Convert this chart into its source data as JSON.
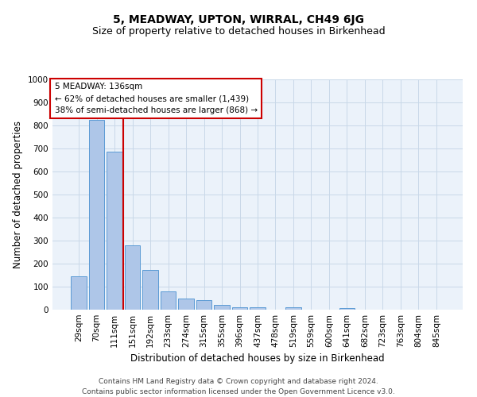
{
  "title": "5, MEADWAY, UPTON, WIRRAL, CH49 6JG",
  "subtitle": "Size of property relative to detached houses in Birkenhead",
  "xlabel": "Distribution of detached houses by size in Birkenhead",
  "ylabel": "Number of detached properties",
  "categories": [
    "29sqm",
    "70sqm",
    "111sqm",
    "151sqm",
    "192sqm",
    "233sqm",
    "274sqm",
    "315sqm",
    "355sqm",
    "396sqm",
    "437sqm",
    "478sqm",
    "519sqm",
    "559sqm",
    "600sqm",
    "641sqm",
    "682sqm",
    "723sqm",
    "763sqm",
    "804sqm",
    "845sqm"
  ],
  "values": [
    145,
    825,
    685,
    280,
    172,
    78,
    50,
    42,
    20,
    10,
    10,
    0,
    10,
    0,
    0,
    7,
    0,
    0,
    0,
    0,
    0
  ],
  "bar_color": "#AEC6E8",
  "bar_edge_color": "#5B9BD5",
  "vline_pos": 2.5,
  "vline_color": "#CC0000",
  "annotation_text": "5 MEADWAY: 136sqm\n← 62% of detached houses are smaller (1,439)\n38% of semi-detached houses are larger (868) →",
  "annotation_box_color": "#ffffff",
  "annotation_box_edge": "#CC0000",
  "ylim": [
    0,
    1000
  ],
  "yticks": [
    0,
    100,
    200,
    300,
    400,
    500,
    600,
    700,
    800,
    900,
    1000
  ],
  "grid_color": "#C8D8E8",
  "bg_color": "#EBF2FA",
  "footer": "Contains HM Land Registry data © Crown copyright and database right 2024.\nContains public sector information licensed under the Open Government Licence v3.0.",
  "title_fontsize": 10,
  "subtitle_fontsize": 9,
  "xlabel_fontsize": 8.5,
  "ylabel_fontsize": 8.5,
  "tick_fontsize": 7.5,
  "footer_fontsize": 6.5
}
